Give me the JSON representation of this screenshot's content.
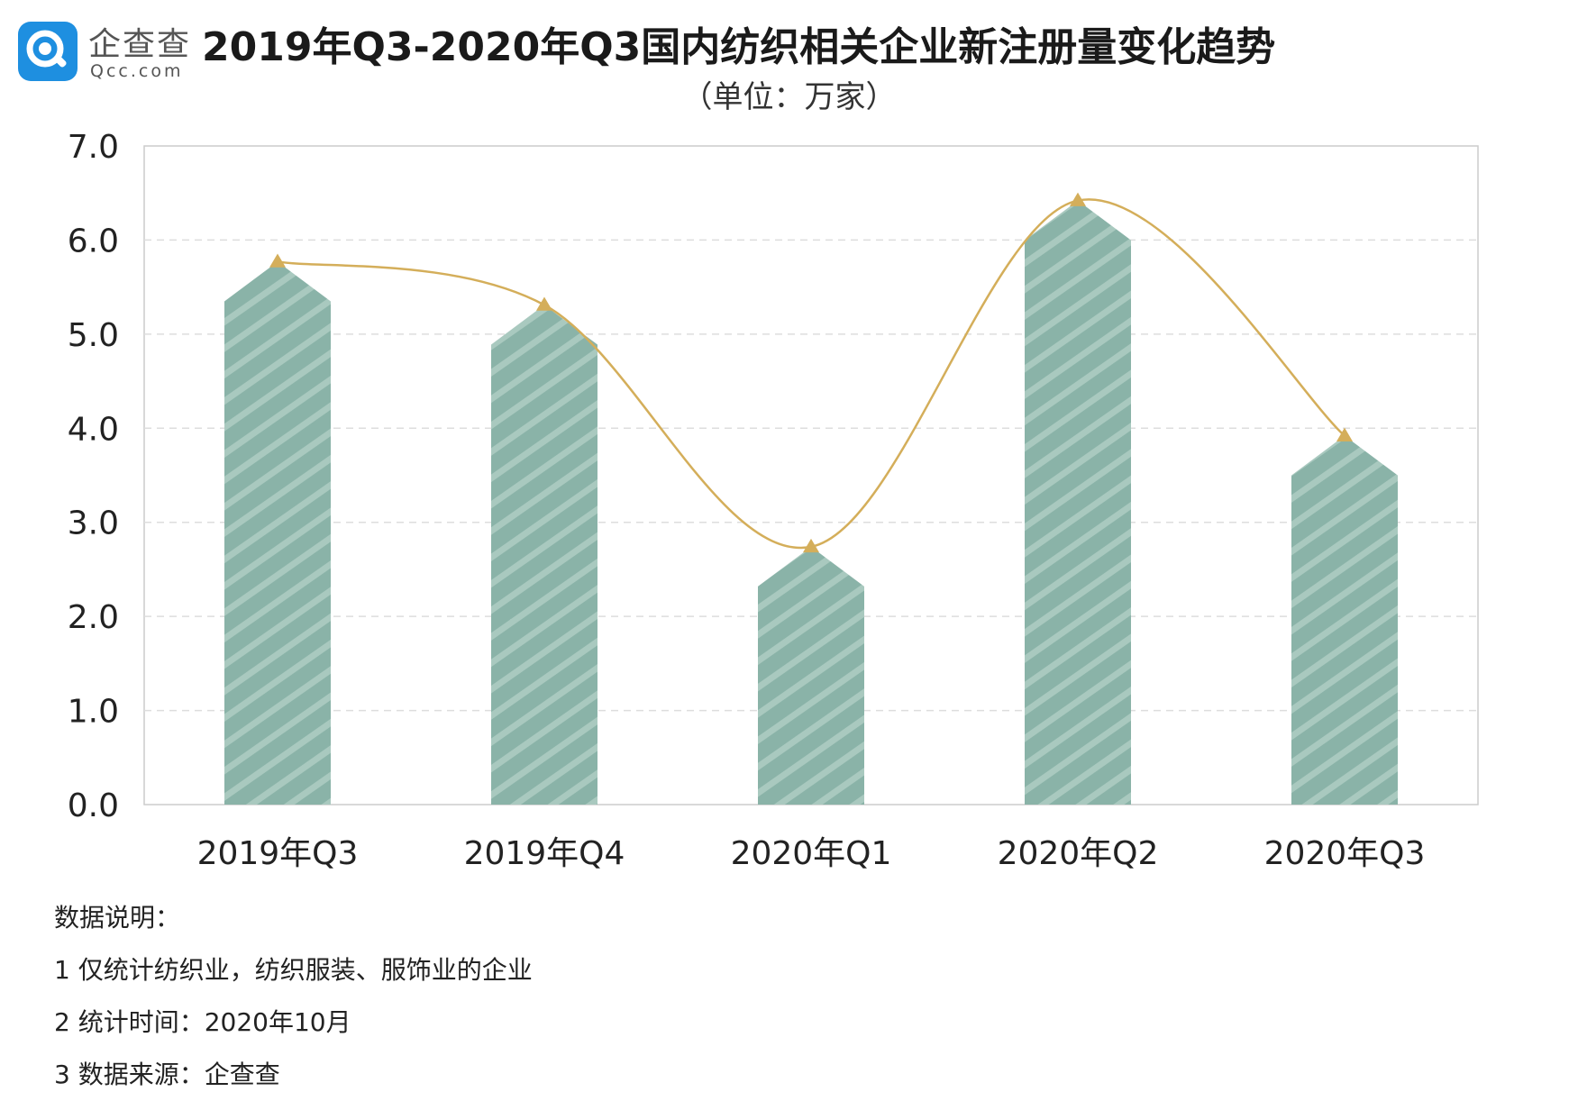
{
  "logo": {
    "name": "企查查",
    "domain": "Qcc.com"
  },
  "title": "2019年Q3-2020年Q3国内纺织相关企业新注册量变化趋势",
  "subtitle": "（单位：万家）",
  "chart_data": {
    "type": "bar",
    "categories": [
      "2019年Q3",
      "2019年Q4",
      "2020年Q1",
      "2020年Q2",
      "2020年Q3"
    ],
    "values": [
      5.77,
      5.31,
      2.74,
      6.42,
      3.92
    ],
    "line_overlay": true,
    "title": "2019年Q3-2020年Q3国内纺织相关企业新注册量变化趋势",
    "ylabel": "",
    "xlabel": "",
    "ylim": [
      0,
      7
    ],
    "yticks": [
      "0.0",
      "1.0",
      "2.0",
      "3.0",
      "4.0",
      "5.0",
      "6.0",
      "7.0"
    ],
    "grid": true,
    "colors": {
      "bar": "#8ab3a8",
      "stripe": "#a9c9bf",
      "line": "#d4ae5a",
      "marker": "#d4ae5a",
      "grid": "#dddddd",
      "frame": "#cccccc"
    }
  },
  "notes": {
    "heading": "数据说明：",
    "items": [
      "1 仅统计纺织业，纺织服装、服饰业的企业",
      "2 统计时间：2020年10月",
      "3 数据来源：企查查"
    ]
  }
}
